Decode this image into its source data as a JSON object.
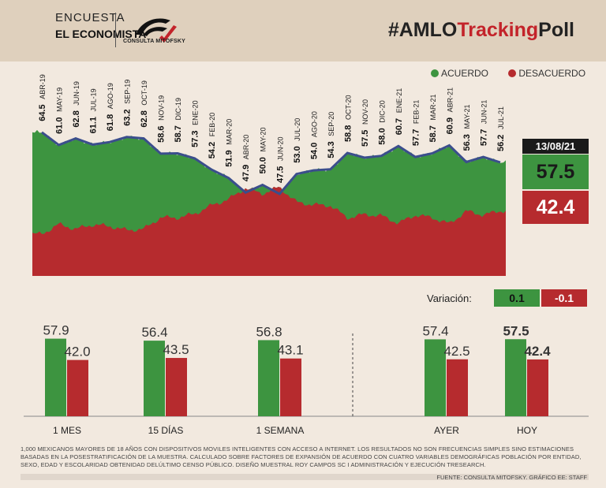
{
  "header": {
    "brand_line1": "ENCUESTA",
    "brand_line2": "EL ECONOMISTA",
    "logo_text": "CONSULTA MITOFSKY",
    "hashtag_prefix": "#AMLO",
    "hashtag_mid": "Tracking",
    "hashtag_suffix": "Poll"
  },
  "legend": {
    "acuerdo": "ACUERDO",
    "desacuerdo": "DESACUERDO"
  },
  "colors": {
    "acuerdo": "#3d9440",
    "desacuerdo": "#b62b2e",
    "line": "#3b4e8c",
    "background": "#f2e9df",
    "header": "#dfd0bd"
  },
  "current": {
    "date": "13/08/21",
    "acuerdo": "57.5",
    "desacuerdo": "42.4"
  },
  "variation": {
    "label": "Variación:",
    "acuerdo": "0.1",
    "desacuerdo": "-0.1"
  },
  "chart_data": [
    {
      "type": "area",
      "x_labels": [
        "ABR-19",
        "MAY-19",
        "JUN-19",
        "JUL-19",
        "AGO-19",
        "SEP-19",
        "OCT-19",
        "NOV-19",
        "DIC-19",
        "ENE-20",
        "FEB-20",
        "MAR-20",
        "ABR-20",
        "MAY-20",
        "JUN-20",
        "JUL-20",
        "AGO-20",
        "SEP-20",
        "OCT-20",
        "NOV-20",
        "DIC-20",
        "ENE-21",
        "FEB-21",
        "MAR-21",
        "ABR-21",
        "MAY-21",
        "JUN-21",
        "JUL-21"
      ],
      "series": [
        {
          "name": "ACUERDO",
          "values": [
            64.5,
            61.0,
            62.8,
            61.1,
            61.8,
            63.2,
            62.8,
            58.6,
            58.7,
            57.3,
            54.2,
            51.9,
            47.9,
            50.0,
            47.5,
            53.0,
            54.0,
            54.3,
            58.8,
            57.5,
            58.0,
            60.7,
            57.7,
            58.7,
            60.9,
            56.3,
            57.7,
            56.2
          ],
          "labels": [
            "64.5",
            "61.0",
            "62.8",
            "61.1",
            "61.8",
            "63.2",
            "62.8",
            "58.6",
            "58.7",
            "57.3",
            "54.2",
            "51.9",
            "47.9",
            "50.0",
            "47.5",
            "53.0",
            "54.0",
            "54.3",
            "58.8",
            "57.5",
            "58.0",
            "60.7",
            "57.7",
            "58.7",
            "60.9",
            "56.3",
            "57.7",
            "56.2"
          ]
        },
        {
          "name": "DESACUERDO",
          "values": [
            35.2,
            38.7,
            37.0,
            38.6,
            38.0,
            36.6,
            37.0,
            41.2,
            41.1,
            42.5,
            45.6,
            47.8,
            51.8,
            49.8,
            52.2,
            46.7,
            45.8,
            45.5,
            41.0,
            42.3,
            41.8,
            39.1,
            42.1,
            41.1,
            38.9,
            43.5,
            42.1,
            43.6
          ]
        }
      ],
      "last_value": 57.5,
      "ylim": [
        0,
        100
      ]
    },
    {
      "type": "bar",
      "categories": [
        "1 MES",
        "15 DÍAS",
        "1 SEMANA",
        "AYER",
        "HOY"
      ],
      "series": [
        {
          "name": "ACUERDO",
          "values": [
            57.9,
            56.4,
            56.8,
            57.4,
            57.5
          ],
          "labels": [
            "57.9",
            "56.4",
            "56.8",
            "57.4",
            "57.5"
          ]
        },
        {
          "name": "DESACUERDO",
          "values": [
            42.0,
            43.5,
            43.1,
            42.5,
            42.4
          ],
          "labels": [
            "42.0",
            "43.5",
            "43.1",
            "42.5",
            "42.4"
          ]
        }
      ]
    }
  ],
  "footnote": "1,000 MEXICANOS MAYORES DE 18 AÑOS CON DISPOSITIVOS MOVILES INTELIGENTES CON ACCESO A INTERNET. LOS RESULTADOS NO SON FRECUENCIAS SIMPLES SINO ESTIMACIONES BASADAS EN LA POSESTRATIFICACIÓN DE LA MUESTRA. CALCULADO SOBRE FACTORES DE EXPANSIÓN DE ACUERDO CON CUATRO VARIABLES DEMOGRÁFICAS POBLACIÓN POR ENTIDAD, SEXO, EDAD Y ESCOLARIDAD OBTENIDAD DELÚLTIMO CENSO PÚBLICO. DISEÑO MUESTRAL ROY CAMPOS SC I ADMINISTRACIÓN Y EJECUCIÓN TRESEARCH.",
  "source": "FUENTE: CONSULTA MITOFSKY. GRÁFICO EE: STAFF"
}
